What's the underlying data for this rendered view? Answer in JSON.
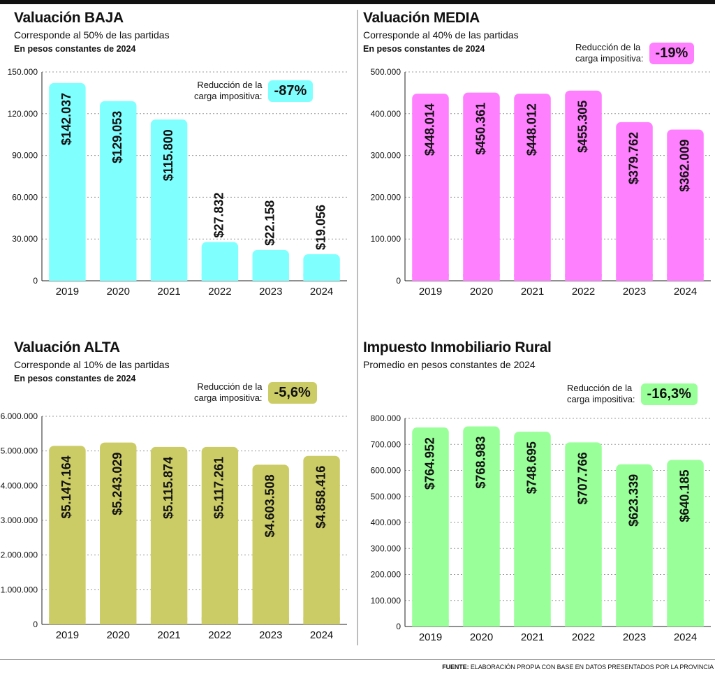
{
  "footer": {
    "label": "FUENTE:",
    "text": "ELABORACIÓN PROPIA CON BASE EN DATOS PRESENTADOS POR LA PROVINCIA"
  },
  "chart_data": [
    {
      "type": "bar",
      "title": "Valuación BAJA",
      "subtitle": "Corresponde al 50% de las partidas",
      "subtitle2": "En pesos constantes de 2024",
      "reduction_label": [
        "Reducción de la",
        "carga impositiva:"
      ],
      "reduction_value": "-87%",
      "color": "#80ffff",
      "categories": [
        "2019",
        "2020",
        "2021",
        "2022",
        "2023",
        "2024"
      ],
      "values": [
        142037,
        129053,
        115800,
        27832,
        22158,
        19056
      ],
      "labels": [
        "$142.037",
        "$129.053",
        "$115.800",
        "$27.832",
        "$22.158",
        "$19.056"
      ],
      "ylim": [
        0,
        150000
      ],
      "yticks": [
        "0",
        "30.000",
        "60.000",
        "90.000",
        "120.000",
        "150.000"
      ],
      "ytick_values": [
        0,
        30000,
        60000,
        90000,
        120000,
        150000
      ]
    },
    {
      "type": "bar",
      "title": "Valuación MEDIA",
      "subtitle": "Corresponde al 40% de las partidas",
      "subtitle2": "En pesos constantes de 2024",
      "reduction_label": [
        "Reducción de la",
        "carga impositiva:"
      ],
      "reduction_value": "-19%",
      "color": "#ff80ff",
      "categories": [
        "2019",
        "2020",
        "2021",
        "2022",
        "2023",
        "2024"
      ],
      "values": [
        448014,
        450361,
        448012,
        455305,
        379762,
        362009
      ],
      "labels": [
        "$448.014",
        "$450.361",
        "$448.012",
        "$455.305",
        "$379.762",
        "$362.009"
      ],
      "ylim": [
        0,
        500000
      ],
      "yticks": [
        "0",
        "100.000",
        "200.000",
        "300.000",
        "400.000",
        "500.000"
      ],
      "ytick_values": [
        0,
        100000,
        200000,
        300000,
        400000,
        500000
      ]
    },
    {
      "type": "bar",
      "title": "Valuación ALTA",
      "subtitle": "Corresponde al 10% de las partidas",
      "subtitle2": "En pesos constantes de 2024",
      "reduction_label": [
        "Reducción de la",
        "carga impositiva:"
      ],
      "reduction_value": "-5,6%",
      "color": "#cccc66",
      "categories": [
        "2019",
        "2020",
        "2021",
        "2022",
        "2023",
        "2024"
      ],
      "values": [
        5147164,
        5243029,
        5115874,
        5117261,
        4603508,
        4858416
      ],
      "labels": [
        "$5.147.164",
        "$5.243.029",
        "$5.115.874",
        "$5.117.261",
        "$4.603.508",
        "$4.858.416"
      ],
      "ylim": [
        0,
        6000000
      ],
      "yticks": [
        "0",
        "1.000.000",
        "2.000.000",
        "3.000.000",
        "4.000.000",
        "5.000.000",
        "6.000.000"
      ],
      "ytick_values": [
        0,
        1000000,
        2000000,
        3000000,
        4000000,
        5000000,
        6000000
      ]
    },
    {
      "type": "bar",
      "title": "Impuesto Inmobiliario Rural",
      "subtitle": "Promedio en pesos constantes de 2024",
      "subtitle2": "",
      "reduction_label": [
        "Reducción de la",
        "carga impositiva:"
      ],
      "reduction_value": "-16,3%",
      "color": "#99ff99",
      "categories": [
        "2019",
        "2020",
        "2021",
        "2022",
        "2023",
        "2024"
      ],
      "values": [
        764952,
        768983,
        748695,
        707766,
        623339,
        640185
      ],
      "labels": [
        "$764.952",
        "$768.983",
        "$748.695",
        "$707.766",
        "$623.339",
        "$640.185"
      ],
      "ylim": [
        0,
        800000
      ],
      "yticks": [
        "0",
        "100.000",
        "200.000",
        "300.000",
        "400.000",
        "500.000",
        "600.000",
        "700.000",
        "800.000"
      ],
      "ytick_values": [
        0,
        100000,
        200000,
        300000,
        400000,
        500000,
        600000,
        700000,
        800000
      ]
    }
  ]
}
